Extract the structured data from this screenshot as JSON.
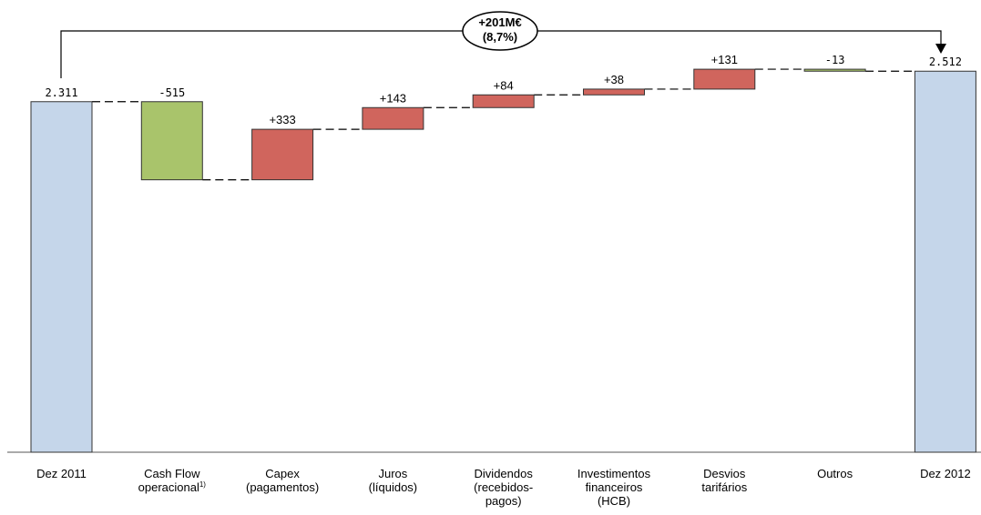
{
  "chart_data": {
    "type": "bar",
    "subtype": "waterfall",
    "categories": [
      {
        "lines": [
          "Dez 2011"
        ]
      },
      {
        "lines": [
          "Cash Flow",
          "operacional"
        ],
        "sup": "1)"
      },
      {
        "lines": [
          "Capex",
          "(pagamentos)"
        ]
      },
      {
        "lines": [
          "Juros",
          "(líquidos)"
        ]
      },
      {
        "lines": [
          "Dividendos",
          "(recebidos-",
          "pagos)"
        ]
      },
      {
        "lines": [
          "Investimentos",
          "financeiros",
          "(HCB)"
        ]
      },
      {
        "lines": [
          "Desvios",
          "tarifários"
        ]
      },
      {
        "lines": [
          "Outros"
        ]
      },
      {
        "lines": [
          "Dez 2012"
        ]
      }
    ],
    "bars": [
      {
        "kind": "total",
        "value": 2311,
        "label": "2.311",
        "color": "#c5d6ea"
      },
      {
        "kind": "step",
        "value": -515,
        "label": "-515",
        "color": "#a9c46b"
      },
      {
        "kind": "step",
        "value": 333,
        "label": "+333",
        "color": "#d0655d"
      },
      {
        "kind": "step",
        "value": 143,
        "label": "+143",
        "color": "#d0655d"
      },
      {
        "kind": "step",
        "value": 84,
        "label": "+84",
        "color": "#d0655d"
      },
      {
        "kind": "step",
        "value": 38,
        "label": "+38",
        "color": "#d0655d"
      },
      {
        "kind": "step",
        "value": 131,
        "label": "+131",
        "color": "#d0655d"
      },
      {
        "kind": "step",
        "value": -13,
        "label": "-13",
        "color": "#a9c46b"
      },
      {
        "kind": "total",
        "value": 2512,
        "label": "2.512",
        "color": "#c5d6ea"
      }
    ],
    "annotation": {
      "line1": "+201M€",
      "line2": "(8,7%)"
    },
    "grid": false,
    "legend": "none"
  }
}
